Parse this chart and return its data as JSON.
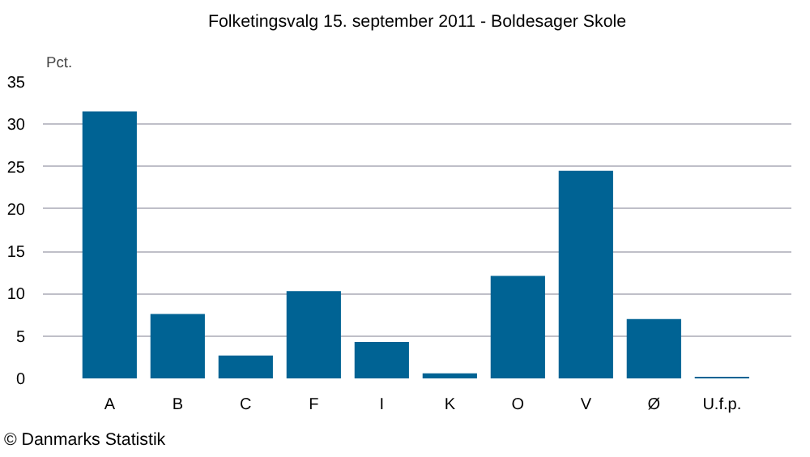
{
  "chart_data": {
    "type": "bar",
    "title": "Folketingsvalg 15. september 2011 - Boldesager Skole",
    "ylabel": "Pct.",
    "categories": [
      "A",
      "B",
      "C",
      "F",
      "I",
      "K",
      "O",
      "V",
      "Ø",
      "U.f.p."
    ],
    "values": [
      31.5,
      7.6,
      2.7,
      10.3,
      4.3,
      0.6,
      12.1,
      24.5,
      7.0,
      0.2
    ],
    "color": "#006394",
    "ylim": [
      0,
      35
    ],
    "yticks": [
      0,
      5,
      10,
      15,
      20,
      25,
      30,
      35
    ],
    "grid": "y",
    "annotations": [
      "© Danmarks Statistik"
    ]
  }
}
